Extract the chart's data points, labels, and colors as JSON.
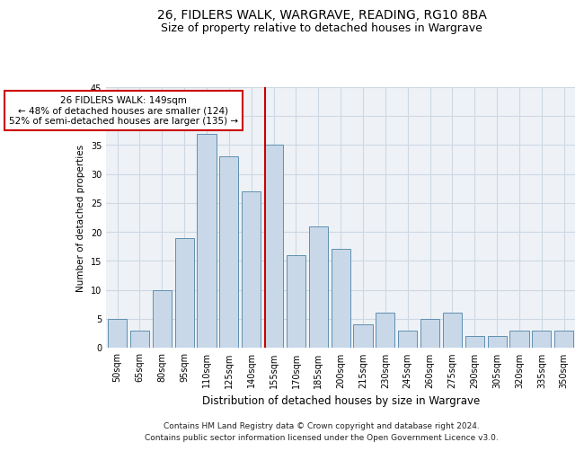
{
  "title1": "26, FIDLERS WALK, WARGRAVE, READING, RG10 8BA",
  "title2": "Size of property relative to detached houses in Wargrave",
  "xlabel": "Distribution of detached houses by size in Wargrave",
  "ylabel": "Number of detached properties",
  "categories": [
    "50sqm",
    "65sqm",
    "80sqm",
    "95sqm",
    "110sqm",
    "125sqm",
    "140sqm",
    "155sqm",
    "170sqm",
    "185sqm",
    "200sqm",
    "215sqm",
    "230sqm",
    "245sqm",
    "260sqm",
    "275sqm",
    "290sqm",
    "305sqm",
    "320sqm",
    "335sqm",
    "350sqm"
  ],
  "values": [
    5,
    3,
    10,
    19,
    37,
    33,
    27,
    35,
    16,
    21,
    17,
    4,
    6,
    3,
    5,
    6,
    2,
    2,
    3,
    3,
    3
  ],
  "bar_color": "#c8d8e8",
  "bar_edge_color": "#6090b0",
  "annotation_text": "26 FIDLERS WALK: 149sqm\n← 48% of detached houses are smaller (124)\n52% of semi-detached houses are larger (135) →",
  "annotation_box_color": "#ffffff",
  "annotation_box_edge_color": "#cc0000",
  "vline_color": "#cc0000",
  "ylim": [
    0,
    45
  ],
  "yticks": [
    0,
    5,
    10,
    15,
    20,
    25,
    30,
    35,
    40,
    45
  ],
  "grid_color": "#cdd8e3",
  "background_color": "#eef2f7",
  "footer1": "Contains HM Land Registry data © Crown copyright and database right 2024.",
  "footer2": "Contains public sector information licensed under the Open Government Licence v3.0.",
  "title1_fontsize": 10,
  "title2_fontsize": 9,
  "xlabel_fontsize": 8.5,
  "ylabel_fontsize": 7.5,
  "tick_fontsize": 7,
  "annotation_fontsize": 7.5,
  "footer_fontsize": 6.5
}
